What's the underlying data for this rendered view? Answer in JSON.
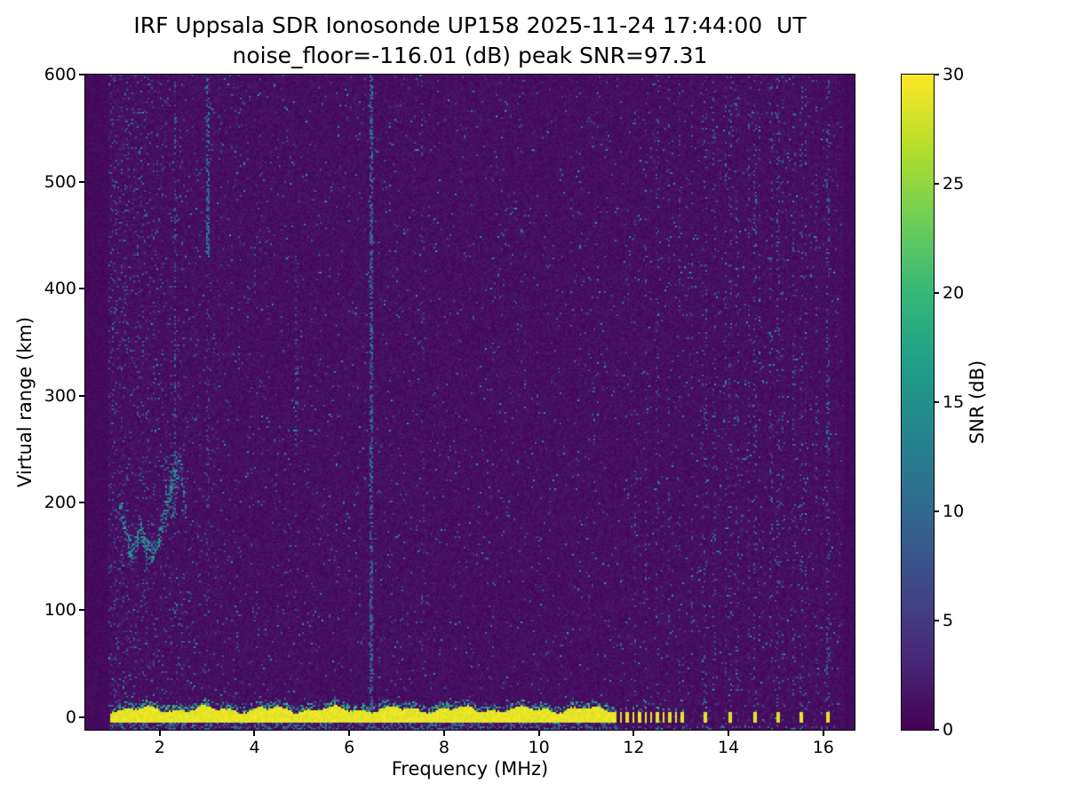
{
  "figure": {
    "background": "#ffffff",
    "text_color": "#000000",
    "spine_color": "#000000"
  },
  "chart_data": {
    "type": "heatmap",
    "title": "IRF Uppsala SDR Ionosonde UP158 2025-11-24 17:44:00  UT",
    "subtitle": "noise_floor=-116.01 (dB) peak SNR=97.31",
    "xlabel": "Frequency (MHz)",
    "ylabel": "Virtual range (km)",
    "xlim": [
      0.43,
      16.66
    ],
    "ylim": [
      -12,
      600
    ],
    "xticks": [
      2,
      4,
      6,
      8,
      10,
      12,
      14,
      16
    ],
    "yticks": [
      0,
      100,
      200,
      300,
      400,
      500,
      600
    ],
    "grid": false,
    "legend": "none",
    "colorbar": {
      "label": "SNR (dB)",
      "min": 0,
      "max": 30,
      "ticks": [
        0,
        5,
        10,
        15,
        20,
        25,
        30
      ],
      "colormap": "viridis"
    },
    "colormap_stops": [
      "#440154",
      "#482878",
      "#3e4a89",
      "#31688e",
      "#26828e",
      "#1f9e89",
      "#35b779",
      "#6ece58",
      "#b5de2b",
      "#fde725"
    ],
    "data_extent": {
      "fmin": 0.9,
      "fmax": 16.45
    },
    "noise": {
      "seed": 1234,
      "base_p": 0.018,
      "left_boost": 0.1,
      "left_scale": 1.1
    },
    "ground_band": {
      "fmin": 0.95,
      "fmax": 11.65,
      "rtop": 7,
      "rbot": -5,
      "vmax": 30
    },
    "bottom_line": {
      "fmin": 0.95,
      "fmax": 16.3,
      "r": -10,
      "density": 0.45
    },
    "dashed_band": {
      "fmin": 11.7,
      "fmax": 13.15,
      "period": 0.13,
      "duty": 0.42
    },
    "isolated_marks": [
      13.5,
      14.05,
      14.55,
      15.05,
      15.55,
      16.1
    ],
    "echo_trace": {
      "points": [
        [
          1.15,
          205
        ],
        [
          1.3,
          165
        ],
        [
          1.45,
          152
        ],
        [
          1.6,
          175
        ],
        [
          1.72,
          158
        ],
        [
          1.85,
          152
        ],
        [
          2.0,
          168
        ],
        [
          2.15,
          195
        ],
        [
          2.3,
          225
        ],
        [
          2.45,
          235
        ],
        [
          2.55,
          190
        ]
      ],
      "thickness": 9,
      "density": 0.6
    },
    "noise_columns": [
      {
        "f": 2.25,
        "hw": 0.12,
        "rmin": 185,
        "rmax": 245,
        "density": 0.25,
        "vmin": 4,
        "vmax": 14
      },
      {
        "f": 2.33,
        "hw": 0.03,
        "rmin": 230,
        "rmax": 600,
        "density": 0.3,
        "vmin": 3,
        "vmax": 12
      },
      {
        "f": 3.02,
        "hw": 0.04,
        "rmin": 430,
        "rmax": 600,
        "density": 0.55,
        "vmin": 4,
        "vmax": 14
      },
      {
        "f": 3.02,
        "hw": 0.03,
        "rmin": 100,
        "rmax": 430,
        "density": 0.12,
        "vmin": 3,
        "vmax": 9
      },
      {
        "f": 4.88,
        "hw": 0.03,
        "rmin": 240,
        "rmax": 440,
        "density": 0.18,
        "vmin": 3,
        "vmax": 9
      },
      {
        "f": 6.45,
        "hw": 0.035,
        "rmin": -5,
        "rmax": 600,
        "density": 0.6,
        "vmin": 4,
        "vmax": 13
      },
      {
        "f": 7.55,
        "hw": 0.03,
        "rmin": 60,
        "rmax": 600,
        "density": 0.08,
        "vmin": 3,
        "vmax": 8
      },
      {
        "f": 9.7,
        "hw": 0.03,
        "rmin": 300,
        "rmax": 360,
        "density": 0.2,
        "vmin": 3,
        "vmax": 10
      }
    ],
    "rfi_comb": {
      "fmin": 11.78,
      "fmax": 16.3,
      "step": 0.24,
      "hw": 0.025,
      "density": 0.1
    }
  }
}
